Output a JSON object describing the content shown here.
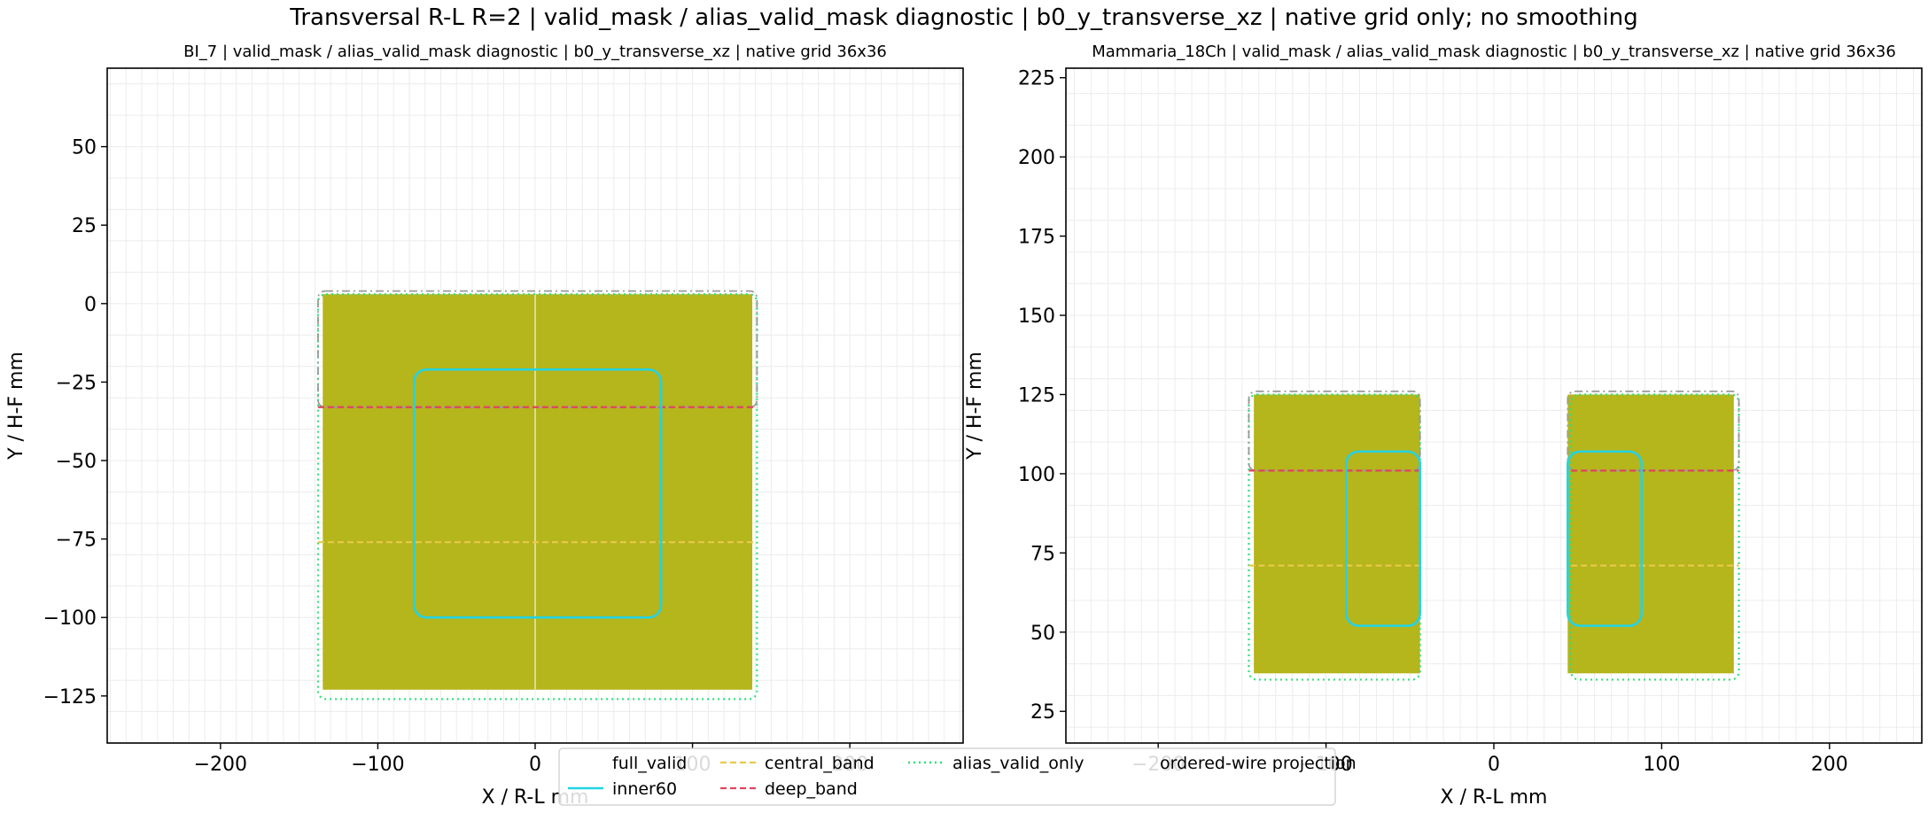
{
  "figure_title": "Transversal R-L R=2 | valid_mask / alias_valid_mask diagnostic | b0_y_transverse_xz | native grid only; no smoothing",
  "colors": {
    "fill": "#b5b51c",
    "inner60": "#22d3e6",
    "central_band": "#e8c94a",
    "deep_band": "#e0455e",
    "alias_valid_only": "#2ee07a",
    "ordered_wire": "#9a9a9a",
    "grid": "#ececec"
  },
  "legend": {
    "placement": "lower-center",
    "entries": [
      {
        "key": "full_valid",
        "label": "full_valid"
      },
      {
        "key": "inner60",
        "label": "inner60"
      },
      {
        "key": "central_band",
        "label": "central_band"
      },
      {
        "key": "deep_band",
        "label": "deep_band"
      },
      {
        "key": "alias_valid_only",
        "label": "alias_valid_only"
      },
      {
        "key": "ordered_wire",
        "label": "ordered-wire projection"
      }
    ]
  },
  "chart_data": [
    {
      "type": "heatmap",
      "title": "BI_7 | valid_mask / alias_valid_mask diagnostic | b0_y_transverse_xz | native grid 36x36",
      "xlabel": "X / R-L mm",
      "ylabel": "Y / H-F mm",
      "xlim": [
        -272,
        272
      ],
      "ylim": [
        -140,
        75
      ],
      "xticks": [
        -200,
        -100,
        0,
        100,
        200
      ],
      "yticks": [
        -125,
        -100,
        -75,
        -50,
        -25,
        0,
        25,
        50
      ],
      "grid": true,
      "grid_step": 10,
      "regions": {
        "full_valid": [
          {
            "x0": -135,
            "x1": 138,
            "y0": -123,
            "y1": 3
          }
        ],
        "alias_valid_only": [
          {
            "x0": -138,
            "x1": 141,
            "y0": -126,
            "y1": 3
          }
        ],
        "ordered_wire": [
          {
            "x0": -138,
            "x1": 141,
            "y0": -33,
            "y1": 4
          }
        ],
        "deep_band_y": -33,
        "central_band_y": -76,
        "inner60": [
          {
            "x0": -77,
            "x1": 80,
            "y0": -100,
            "y1": -21
          }
        ],
        "center_line_x": 0
      }
    },
    {
      "type": "heatmap",
      "title": "Mammaria_18Ch | valid_mask / alias_valid_mask diagnostic | b0_y_transverse_xz | native grid 36x36",
      "xlabel": "X / R-L mm",
      "ylabel": "Y / H-F mm",
      "xlim": [
        -255,
        255
      ],
      "ylim": [
        15,
        228
      ],
      "xticks": [
        -200,
        -100,
        0,
        100,
        200
      ],
      "yticks": [
        25,
        50,
        75,
        100,
        125,
        150,
        175,
        200,
        225
      ],
      "grid": true,
      "grid_step": 10,
      "regions": {
        "full_valid": [
          {
            "x0": -143,
            "x1": -44,
            "y0": 37,
            "y1": 125
          },
          {
            "x0": 44,
            "x1": 143,
            "y0": 37,
            "y1": 125
          }
        ],
        "alias_valid_only": [
          {
            "x0": -146,
            "x1": -44,
            "y0": 35,
            "y1": 125
          },
          {
            "x0": 46,
            "x1": 146,
            "y0": 35,
            "y1": 125
          }
        ],
        "ordered_wire": [
          {
            "x0": -146,
            "x1": -44,
            "y0": 101,
            "y1": 126
          },
          {
            "x0": 44,
            "x1": 146,
            "y0": 101,
            "y1": 126
          }
        ],
        "deep_band_y": 101,
        "central_band_y": 71,
        "inner60": [
          {
            "x0": -88,
            "x1": -44,
            "y0": 52,
            "y1": 107
          },
          {
            "x0": 44,
            "x1": 88,
            "y0": 52,
            "y1": 107
          }
        ],
        "center_line_x": null
      }
    }
  ]
}
